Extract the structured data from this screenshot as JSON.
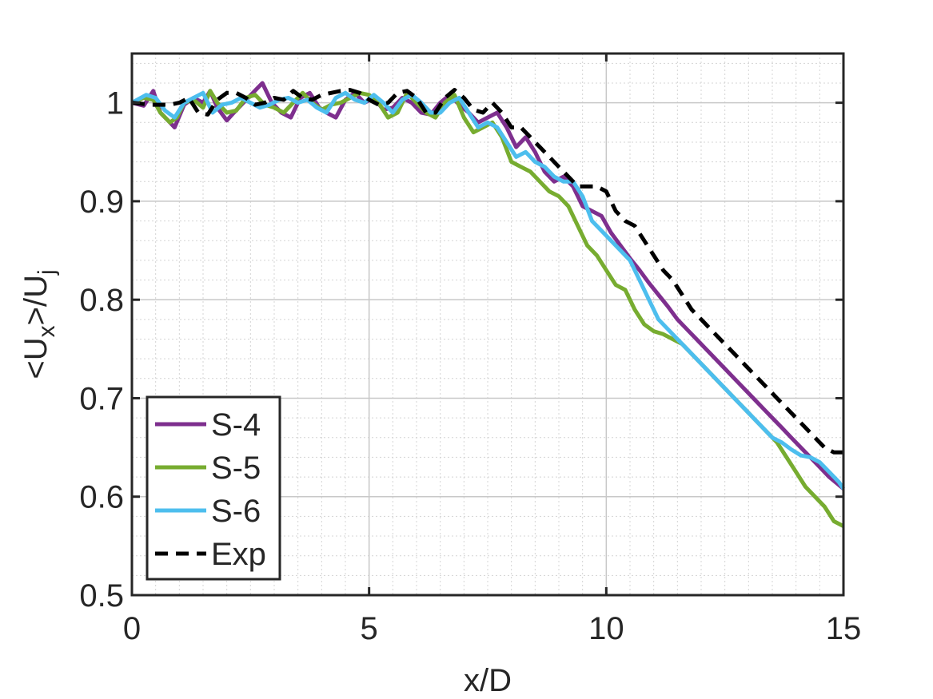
{
  "chart_data": {
    "type": "line",
    "title": "",
    "xlabel": "x/D",
    "ylabel": {
      "pre": "<U",
      "sub1": "x",
      "mid": ">/U",
      "sub2": "j"
    },
    "xlim": [
      0,
      15
    ],
    "ylim": [
      0.5,
      1.05
    ],
    "xticks": [
      0,
      5,
      10,
      15
    ],
    "xtick_labels": [
      "0",
      "5",
      "10",
      "15"
    ],
    "yticks": [
      0.5,
      0.6,
      0.7,
      0.8,
      0.9,
      1.0
    ],
    "ytick_labels": [
      "0.5",
      "0.6",
      "0.7",
      "0.8",
      "0.9",
      "1"
    ],
    "grid": true,
    "minor_grid": true,
    "legend_position": "bottom-left",
    "series": [
      {
        "name": "S-4",
        "color": "#7e2f8e",
        "dash": "solid",
        "x": [
          0,
          0.25,
          0.45,
          0.6,
          0.8,
          0.9,
          1.1,
          1.3,
          1.5,
          1.65,
          1.8,
          2.0,
          2.15,
          2.35,
          2.55,
          2.75,
          2.95,
          3.15,
          3.35,
          3.55,
          3.75,
          3.95,
          4.1,
          4.3,
          4.5,
          4.7,
          4.9,
          5.1,
          5.3,
          5.5,
          5.7,
          5.9,
          6.1,
          6.3,
          6.5,
          6.7,
          6.9,
          7.1,
          7.3,
          7.5,
          7.7,
          7.9,
          8.1,
          8.3,
          8.5,
          8.7,
          8.9,
          9.1,
          9.3,
          9.5,
          9.7,
          9.9,
          10.1,
          10.3,
          10.5,
          10.7,
          10.9,
          11.1,
          11.3,
          11.5,
          11.7,
          11.9,
          12.1,
          12.3,
          12.5,
          12.7,
          12.9,
          13.1,
          13.3,
          13.5,
          13.7,
          13.9,
          14.1,
          14.3,
          14.5,
          14.7,
          14.9,
          15.0
        ],
        "y": [
          1.0,
          0.997,
          1.012,
          0.99,
          0.98,
          0.975,
          0.998,
          1.005,
          1.0,
          1.012,
          0.995,
          0.982,
          0.99,
          1.0,
          1.01,
          1.02,
          1.0,
          0.99,
          0.985,
          1.005,
          1.01,
          0.995,
          0.99,
          0.985,
          1.003,
          1.01,
          1.0,
          1.005,
          0.993,
          0.995,
          1.005,
          1.0,
          0.99,
          0.988,
          1.0,
          1.008,
          0.998,
          0.99,
          0.98,
          0.985,
          0.99,
          0.975,
          0.955,
          0.965,
          0.95,
          0.93,
          0.92,
          0.925,
          0.915,
          0.895,
          0.89,
          0.885,
          0.868,
          0.855,
          0.842,
          0.83,
          0.817,
          0.805,
          0.793,
          0.78,
          0.77,
          0.76,
          0.75,
          0.74,
          0.73,
          0.72,
          0.71,
          0.7,
          0.69,
          0.68,
          0.67,
          0.66,
          0.65,
          0.64,
          0.63,
          0.62,
          0.612,
          0.608
        ]
      },
      {
        "name": "S-5",
        "color": "#77ac30",
        "dash": "solid",
        "x": [
          0,
          0.25,
          0.45,
          0.6,
          0.8,
          0.95,
          1.1,
          1.3,
          1.5,
          1.65,
          1.8,
          2.0,
          2.2,
          2.4,
          2.6,
          2.8,
          3.0,
          3.2,
          3.4,
          3.6,
          3.8,
          4.0,
          4.2,
          4.4,
          4.6,
          4.8,
          5.0,
          5.2,
          5.4,
          5.6,
          5.8,
          6.0,
          6.2,
          6.4,
          6.6,
          6.8,
          7.0,
          7.2,
          7.4,
          7.6,
          7.8,
          8.0,
          8.2,
          8.4,
          8.6,
          8.8,
          9.0,
          9.2,
          9.4,
          9.6,
          9.8,
          10.0,
          10.2,
          10.4,
          10.6,
          10.8,
          11.0,
          11.2,
          11.4,
          11.6,
          11.8,
          12.0,
          12.2,
          12.4,
          12.6,
          12.8,
          13.0,
          13.2,
          13.4,
          13.6,
          13.8,
          14.0,
          14.2,
          14.4,
          14.6,
          14.8,
          15.0
        ],
        "y": [
          1.0,
          1.005,
          1.003,
          0.99,
          0.98,
          0.985,
          1.0,
          1.003,
          0.995,
          1.012,
          1.0,
          0.99,
          0.992,
          1.005,
          1.008,
          0.998,
          0.995,
          0.99,
          1.0,
          1.01,
          1.0,
          0.993,
          0.998,
          1.0,
          1.005,
          1.01,
          1.008,
          1.0,
          0.985,
          0.99,
          1.01,
          1.0,
          0.99,
          0.985,
          1.0,
          1.008,
          0.985,
          0.97,
          0.975,
          0.98,
          0.965,
          0.94,
          0.935,
          0.93,
          0.92,
          0.91,
          0.905,
          0.895,
          0.875,
          0.855,
          0.845,
          0.83,
          0.815,
          0.81,
          0.79,
          0.775,
          0.768,
          0.765,
          0.76,
          0.755,
          0.745,
          0.735,
          0.725,
          0.715,
          0.705,
          0.695,
          0.685,
          0.675,
          0.665,
          0.655,
          0.64,
          0.625,
          0.61,
          0.6,
          0.59,
          0.575,
          0.57
        ]
      },
      {
        "name": "S-6",
        "color": "#4dbeee",
        "dash": "solid",
        "x": [
          0,
          0.3,
          0.5,
          0.7,
          0.9,
          1.1,
          1.3,
          1.5,
          1.7,
          1.9,
          2.1,
          2.3,
          2.5,
          2.7,
          2.9,
          3.1,
          3.3,
          3.5,
          3.7,
          3.9,
          4.1,
          4.3,
          4.5,
          4.7,
          4.9,
          5.1,
          5.3,
          5.5,
          5.7,
          5.9,
          6.1,
          6.3,
          6.5,
          6.7,
          6.9,
          7.1,
          7.3,
          7.5,
          7.7,
          7.9,
          8.1,
          8.3,
          8.5,
          8.7,
          8.9,
          9.1,
          9.3,
          9.5,
          9.7,
          9.9,
          10.1,
          10.3,
          10.5,
          10.7,
          10.9,
          11.1,
          11.3,
          11.5,
          11.7,
          11.9,
          12.1,
          12.3,
          12.5,
          12.7,
          12.9,
          13.1,
          13.3,
          13.5,
          13.7,
          13.9,
          14.1,
          14.3,
          14.5,
          14.7,
          14.9,
          15.0
        ],
        "y": [
          1.0,
          1.008,
          1.005,
          0.992,
          0.985,
          1.0,
          1.005,
          1.01,
          0.99,
          0.998,
          1.0,
          1.005,
          1.0,
          0.995,
          0.998,
          1.003,
          1.005,
          1.0,
          1.003,
          0.995,
          0.99,
          1.005,
          1.01,
          1.003,
          1.0,
          1.008,
          1.0,
          0.99,
          1.003,
          1.008,
          1.0,
          0.99,
          0.99,
          1.0,
          1.005,
          0.99,
          0.975,
          0.98,
          0.975,
          0.96,
          0.945,
          0.95,
          0.94,
          0.935,
          0.925,
          0.92,
          0.92,
          0.905,
          0.88,
          0.87,
          0.86,
          0.85,
          0.84,
          0.82,
          0.8,
          0.78,
          0.77,
          0.76,
          0.75,
          0.74,
          0.73,
          0.72,
          0.71,
          0.7,
          0.69,
          0.68,
          0.67,
          0.66,
          0.655,
          0.648,
          0.642,
          0.64,
          0.635,
          0.625,
          0.615,
          0.608
        ]
      },
      {
        "name": "Exp",
        "color": "#000000",
        "dash": "dashed",
        "x": [
          0,
          0.4,
          0.8,
          1.0,
          1.2,
          1.4,
          1.6,
          1.8,
          2.0,
          2.2,
          2.4,
          2.6,
          2.8,
          3.0,
          3.2,
          3.4,
          3.6,
          3.8,
          4.0,
          4.2,
          4.4,
          4.6,
          4.8,
          5.0,
          5.2,
          5.4,
          5.6,
          5.8,
          6.0,
          6.2,
          6.4,
          6.6,
          6.8,
          7.0,
          7.2,
          7.4,
          7.6,
          7.8,
          8.0,
          8.2,
          8.4,
          8.6,
          8.8,
          9.0,
          9.2,
          9.4,
          9.6,
          9.8,
          10.0,
          10.2,
          10.4,
          10.6,
          10.8,
          11.0,
          11.2,
          11.4,
          11.6,
          11.8,
          12.0,
          12.2,
          12.4,
          12.6,
          12.8,
          13.0,
          13.2,
          13.4,
          13.6,
          13.8,
          14.0,
          14.2,
          14.4,
          14.6,
          14.8,
          15.0
        ],
        "y": [
          1.0,
          0.998,
          0.998,
          1.0,
          1.005,
          0.99,
          0.988,
          1.003,
          1.01,
          1.01,
          1.005,
          0.998,
          1.0,
          1.005,
          1.003,
          1.012,
          1.005,
          1.003,
          1.008,
          1.01,
          1.012,
          1.013,
          1.01,
          1.003,
          0.998,
          1.0,
          1.01,
          1.012,
          1.005,
          0.99,
          0.99,
          1.005,
          1.013,
          1.005,
          0.993,
          0.99,
          1.0,
          0.99,
          0.975,
          0.975,
          0.965,
          0.955,
          0.945,
          0.935,
          0.925,
          0.915,
          0.915,
          0.915,
          0.91,
          0.89,
          0.88,
          0.875,
          0.86,
          0.845,
          0.83,
          0.82,
          0.805,
          0.79,
          0.78,
          0.77,
          0.76,
          0.75,
          0.74,
          0.73,
          0.72,
          0.71,
          0.7,
          0.69,
          0.68,
          0.67,
          0.66,
          0.65,
          0.645,
          0.645
        ]
      }
    ]
  }
}
